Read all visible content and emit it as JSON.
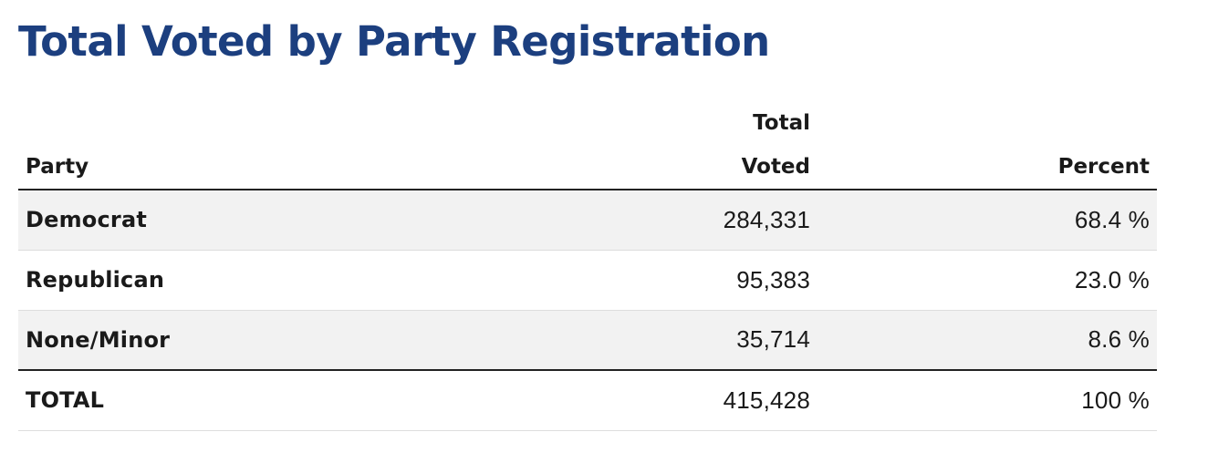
{
  "title": "Total Voted by Party Registration",
  "table": {
    "headers": {
      "party": "Party",
      "votes_line1": "Total",
      "votes_line2": "Voted",
      "percent": "Percent"
    },
    "rows": [
      {
        "party": "Democrat",
        "votes": "284,331",
        "percent": "68.4 %"
      },
      {
        "party": "Republican",
        "votes": "95,383",
        "percent": "23.0 %"
      },
      {
        "party": "None/Minor",
        "votes": "35,714",
        "percent": "8.6 %"
      }
    ],
    "total": {
      "party": "TOTAL",
      "votes": "415,428",
      "percent": "100 %"
    }
  },
  "colors": {
    "title": "#1c3f7f",
    "row_shade": "#f2f2f2",
    "rule": "#222222"
  }
}
